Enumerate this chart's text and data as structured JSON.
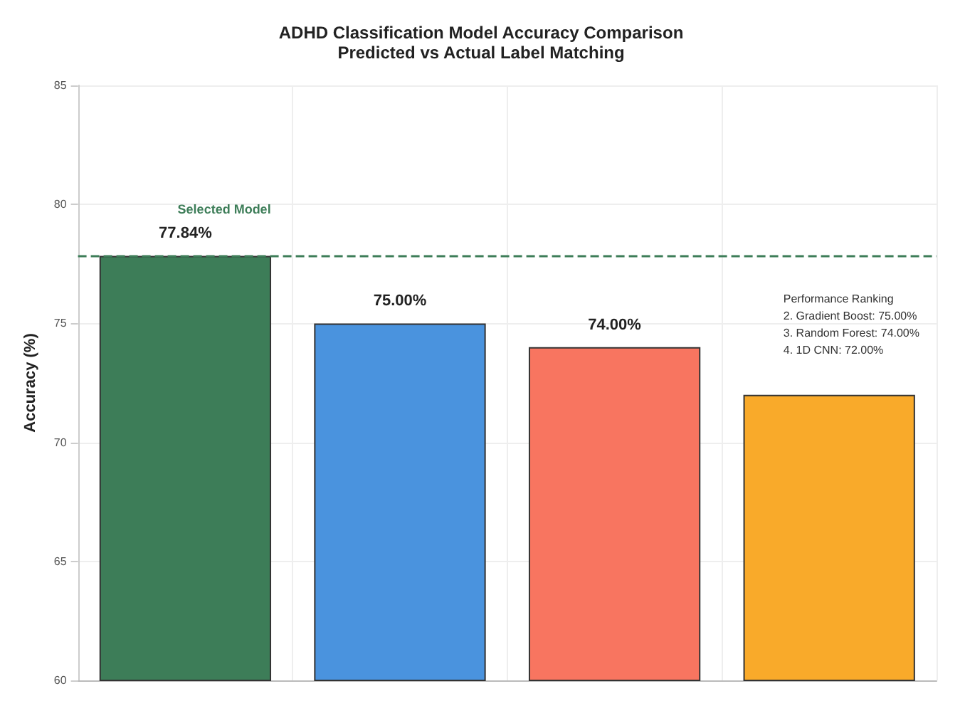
{
  "chart_data": {
    "type": "bar",
    "title": "ADHD Classification Model Accuracy Comparison",
    "subtitle": "Predicted vs Actual Label Matching",
    "ylabel": "Accuracy (%)",
    "categories": [
      null,
      null,
      null,
      null
    ],
    "values": [
      77.84,
      75,
      74,
      72
    ],
    "colors": [
      "#3d7d58",
      "#4a93de",
      "#f87560",
      "#f9aa2a"
    ],
    "value_labels": [
      "77.84%",
      "75.00%",
      "74.00%",
      null
    ],
    "ylim": [
      60,
      85
    ],
    "yticks": [
      60,
      65,
      70,
      75,
      80,
      85
    ],
    "grid": true,
    "ref_lines": [
      {
        "axis": "y",
        "value": 77.84,
        "label": "Selected Model",
        "color": "#3d7d58",
        "line_style": "dashed"
      }
    ],
    "annotations": [
      "Performance Ranking\n2. Gradient Boost: 75.00%\n3. Random Forest: 74.00%\n4. 1D CNN: 72.00%"
    ]
  }
}
